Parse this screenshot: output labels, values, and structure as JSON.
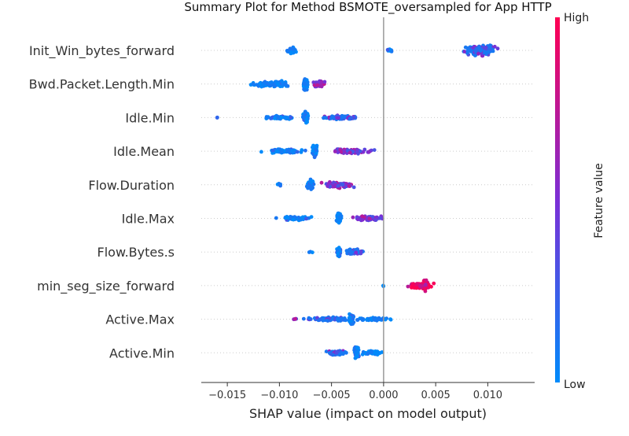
{
  "chart_data": {
    "type": "scatter",
    "subtype": "shap-beeswarm",
    "title": "Summary Plot for Method BSMOTE_oversampled for App HTTP",
    "xlabel": "SHAP value (impact on model output)",
    "xlim": [
      -0.0175,
      0.0145
    ],
    "xticks": [
      {
        "value": -0.015,
        "label": "−0.015"
      },
      {
        "value": -0.01,
        "label": "−0.010"
      },
      {
        "value": -0.005,
        "label": "−0.005"
      },
      {
        "value": 0.0,
        "label": "0.000"
      },
      {
        "value": 0.005,
        "label": "0.005"
      },
      {
        "value": 0.01,
        "label": "0.010"
      }
    ],
    "colorbar": {
      "title": "Feature value",
      "high_label": "High",
      "low_label": "Low",
      "low_color": "#008bfb",
      "high_color": "#ff0052"
    },
    "features": [
      {
        "name": "Init_Win_bytes_forward",
        "clusters": [
          {
            "center": -0.0088,
            "spread": 0.0006,
            "height": 0.25,
            "color": 0.05,
            "count": 40
          },
          {
            "center": 0.0005,
            "spread": 0.0004,
            "height": 0.1,
            "color": 0.1,
            "count": 8
          },
          {
            "center": 0.0093,
            "spread": 0.0018,
            "height": 0.4,
            "color": 0.35,
            "count": 180
          }
        ]
      },
      {
        "name": "Bwd.Packet.Length.Min",
        "clusters": [
          {
            "center": -0.011,
            "spread": 0.0025,
            "height": 0.25,
            "color": 0.05,
            "count": 80
          },
          {
            "center": -0.0075,
            "spread": 0.0003,
            "height": 0.45,
            "color": 0.05,
            "count": 60
          },
          {
            "center": -0.0062,
            "spread": 0.0008,
            "height": 0.22,
            "color": 0.55,
            "count": 40
          }
        ]
      },
      {
        "name": "Idle.Min",
        "clusters": [
          {
            "center": -0.01,
            "spread": 0.002,
            "height": 0.12,
            "color": 0.05,
            "count": 60
          },
          {
            "center": -0.0075,
            "spread": 0.0003,
            "height": 0.45,
            "color": 0.05,
            "count": 60
          },
          {
            "center": -0.004,
            "spread": 0.0025,
            "height": 0.15,
            "color": 0.45,
            "count": 80
          },
          {
            "center": -0.016,
            "spread": 0.0001,
            "height": 0.03,
            "color": 0.0,
            "count": 2
          }
        ]
      },
      {
        "name": "Idle.Mean",
        "clusters": [
          {
            "center": -0.0095,
            "spread": 0.0025,
            "height": 0.15,
            "color": 0.05,
            "count": 80
          },
          {
            "center": -0.0066,
            "spread": 0.0003,
            "height": 0.45,
            "color": 0.05,
            "count": 60
          },
          {
            "center": -0.003,
            "spread": 0.0025,
            "height": 0.18,
            "color": 0.5,
            "count": 90
          }
        ]
      },
      {
        "name": "Flow.Duration",
        "clusters": [
          {
            "center": -0.01,
            "spread": 0.0003,
            "height": 0.12,
            "color": 0.0,
            "count": 8
          },
          {
            "center": -0.007,
            "spread": 0.0004,
            "height": 0.4,
            "color": 0.1,
            "count": 60
          },
          {
            "center": -0.0045,
            "spread": 0.002,
            "height": 0.22,
            "color": 0.5,
            "count": 90
          }
        ]
      },
      {
        "name": "Idle.Max",
        "clusters": [
          {
            "center": -0.0085,
            "spread": 0.002,
            "height": 0.15,
            "color": 0.05,
            "count": 60
          },
          {
            "center": -0.0043,
            "spread": 0.0003,
            "height": 0.45,
            "color": 0.05,
            "count": 60
          },
          {
            "center": -0.0015,
            "spread": 0.002,
            "height": 0.18,
            "color": 0.5,
            "count": 70
          }
        ]
      },
      {
        "name": "Flow.Bytes.s",
        "clusters": [
          {
            "center": -0.007,
            "spread": 0.0002,
            "height": 0.08,
            "color": 0.0,
            "count": 3
          },
          {
            "center": -0.0043,
            "spread": 0.0003,
            "height": 0.45,
            "color": 0.1,
            "count": 60
          },
          {
            "center": -0.0028,
            "spread": 0.0012,
            "height": 0.2,
            "color": 0.35,
            "count": 60
          }
        ]
      },
      {
        "name": "min_seg_size_forward",
        "clusters": [
          {
            "center": 0.0,
            "spread": 0.0001,
            "height": 0.05,
            "color": 0.0,
            "count": 2
          },
          {
            "center": 0.0035,
            "spread": 0.0015,
            "height": 0.22,
            "color": 0.95,
            "count": 80
          },
          {
            "center": 0.004,
            "spread": 0.0003,
            "height": 0.45,
            "color": 0.9,
            "count": 50
          }
        ]
      },
      {
        "name": "Active.Max",
        "clusters": [
          {
            "center": -0.0055,
            "spread": 0.0025,
            "height": 0.15,
            "color": 0.35,
            "count": 90
          },
          {
            "center": -0.0031,
            "spread": 0.0003,
            "height": 0.45,
            "color": 0.05,
            "count": 60
          },
          {
            "center": -0.001,
            "spread": 0.002,
            "height": 0.12,
            "color": 0.05,
            "count": 50
          },
          {
            "center": -0.0085,
            "spread": 0.0002,
            "height": 0.06,
            "color": 0.5,
            "count": 4
          }
        ]
      },
      {
        "name": "Active.Min",
        "clusters": [
          {
            "center": -0.0045,
            "spread": 0.0012,
            "height": 0.18,
            "color": 0.45,
            "count": 60
          },
          {
            "center": -0.0026,
            "spread": 0.0003,
            "height": 0.45,
            "color": 0.05,
            "count": 50
          },
          {
            "center": -0.001,
            "spread": 0.0012,
            "height": 0.15,
            "color": 0.05,
            "count": 50
          }
        ]
      }
    ]
  }
}
